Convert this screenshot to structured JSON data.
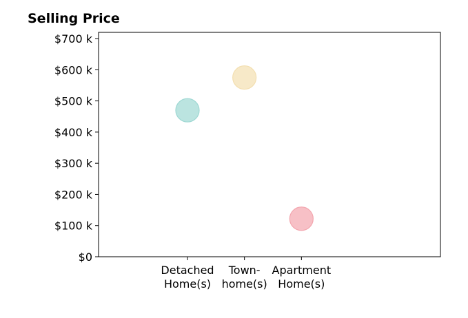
{
  "chart_data": {
    "type": "scatter",
    "title": "Selling Price",
    "xlabel": "",
    "ylabel": "",
    "categories": [
      "Detached Home(s)",
      "Town-home(s)",
      "Apartment Home(s)"
    ],
    "category_label_lines": [
      [
        "Detached",
        "Home(s)"
      ],
      [
        "Town-",
        "home(s)"
      ],
      [
        "Apartment",
        "Home(s)"
      ]
    ],
    "values": [
      470000,
      575000,
      122000
    ],
    "point_colors": [
      "#9ED8D3",
      "#F3DFB0",
      "#F3A5AE"
    ],
    "ylim": [
      0,
      720000
    ],
    "yticks": [
      0,
      100000,
      200000,
      300000,
      400000,
      500000,
      600000,
      700000
    ],
    "ytick_labels": [
      "$0",
      "$100 k",
      "$200 k",
      "$300 k",
      "$400 k",
      "$500 k",
      "$600 k",
      "$700 k"
    ],
    "grid": false,
    "legend": "none"
  }
}
